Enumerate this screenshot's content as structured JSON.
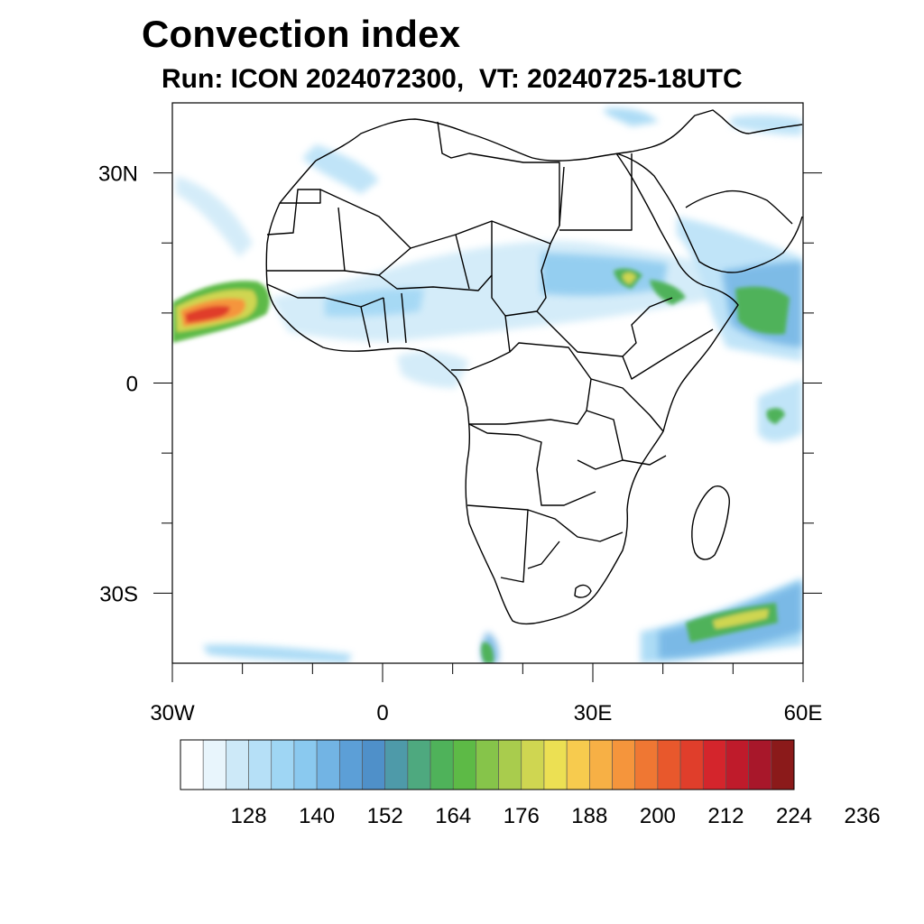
{
  "title": "Convection index",
  "subtitle": "Run: ICON 2024072300,  VT: 20240725-18UTC",
  "map": {
    "region": "Africa",
    "lon_range": [
      -30,
      60
    ],
    "lat_range": [
      -40,
      40
    ],
    "y_ticks": [
      {
        "label": "30N",
        "lat": 30
      },
      {
        "label": "0",
        "lat": 0
      },
      {
        "label": "30S",
        "lat": -30
      }
    ],
    "x_ticks": [
      {
        "label": "30W",
        "lon": -30
      },
      {
        "label": "0",
        "lon": 0
      },
      {
        "label": "30E",
        "lon": 30
      },
      {
        "label": "60E",
        "lon": 60
      }
    ]
  },
  "colorbar": {
    "colors": [
      "#ffffff",
      "#e8f5fc",
      "#cde9f8",
      "#b6e0f7",
      "#9fd6f4",
      "#8ac9ef",
      "#72b4e4",
      "#5c9fd7",
      "#4f90c9",
      "#4e9aa9",
      "#4ea97f",
      "#4fb25a",
      "#5dba46",
      "#86c44a",
      "#a9cc4d",
      "#cfd651",
      "#ece053",
      "#f7cb4e",
      "#f7b045",
      "#f5953c",
      "#ef7733",
      "#e8582c",
      "#e03e2b",
      "#d4252c",
      "#bf1b2b",
      "#a8172a",
      "#8b1a1a"
    ],
    "labels": [
      "128",
      "140",
      "152",
      "164",
      "176",
      "188",
      "200",
      "212",
      "224",
      "236"
    ]
  }
}
